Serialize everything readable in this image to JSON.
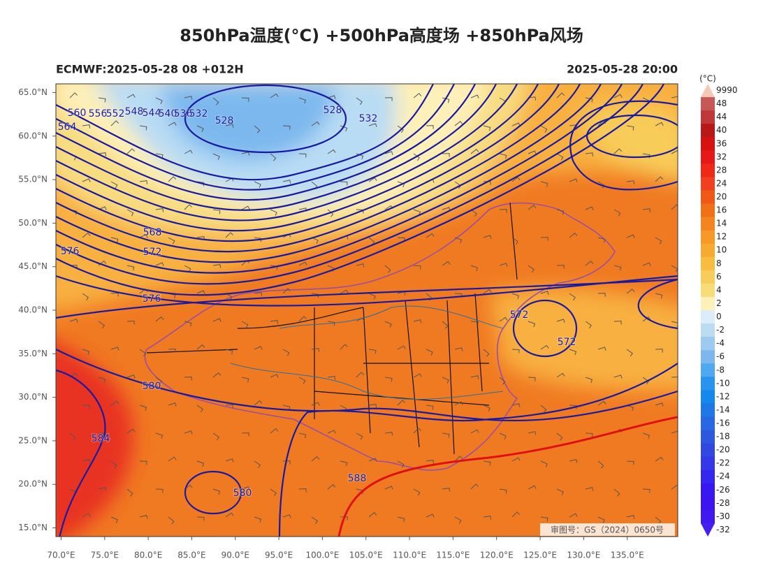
{
  "map_data": {
    "type": "weather-map",
    "title": "850hPa温度(°C) +500hPa高度场 +850hPa风场",
    "subtitle_left": "ECMWF:2025-05-28 08 +012H",
    "subtitle_right": "2025-05-28 20:00",
    "xlim": [
      69.4,
      140.8
    ],
    "ylim": [
      14,
      66
    ],
    "yticks": [
      {
        "value": 65,
        "label": "65.0°N"
      },
      {
        "value": 60,
        "label": "60.0°N"
      },
      {
        "value": 55,
        "label": "55.0°N"
      },
      {
        "value": 50,
        "label": "50.0°N"
      },
      {
        "value": 45,
        "label": "45.0°N"
      },
      {
        "value": 40,
        "label": "40.0°N"
      },
      {
        "value": 35,
        "label": "35.0°N"
      },
      {
        "value": 30,
        "label": "30.0°N"
      },
      {
        "value": 25,
        "label": "25.0°N"
      },
      {
        "value": 20,
        "label": "20.0°N"
      },
      {
        "value": 15,
        "label": "15.0°N"
      }
    ],
    "xticks": [
      {
        "value": 70,
        "label": "70.0°E"
      },
      {
        "value": 75,
        "label": "75.0°E"
      },
      {
        "value": 80,
        "label": "80.0°E"
      },
      {
        "value": 85,
        "label": "85.0°E"
      },
      {
        "value": 90,
        "label": "90.0°E"
      },
      {
        "value": 95,
        "label": "95.0°E"
      },
      {
        "value": 100,
        "label": "100.0°E"
      },
      {
        "value": 105,
        "label": "105.0°E"
      },
      {
        "value": 110,
        "label": "110.0°E"
      },
      {
        "value": 115,
        "label": "115.0°E"
      },
      {
        "value": 120,
        "label": "120.0°E"
      },
      {
        "value": 125,
        "label": "125.0°E"
      },
      {
        "value": 130,
        "label": "130.0°E"
      },
      {
        "value": 135,
        "label": "135.0°E"
      }
    ],
    "colorbar": {
      "unit": "(°C)",
      "levels": [
        9990,
        48,
        44,
        40,
        36,
        32,
        28,
        24,
        20,
        16,
        14,
        12,
        10,
        8,
        6,
        4,
        2,
        0,
        -2,
        -4,
        -6,
        -8,
        -10,
        -12,
        -14,
        -16,
        -18,
        -20,
        -22,
        -24,
        -26,
        -28,
        -30,
        -32
      ],
      "colors": [
        "#f6c8b8",
        "#c85858",
        "#c03838",
        "#b81818",
        "#d81010",
        "#e81818",
        "#f02818",
        "#f04020",
        "#f05818",
        "#f07018",
        "#f48420",
        "#f89828",
        "#f8aa30",
        "#f8bc40",
        "#f8cc58",
        "#f8dc78",
        "#fdf0b8",
        "#dcecf8",
        "#bcdcf4",
        "#9ccaf0",
        "#7cb8ee",
        "#50a8f0",
        "#2894f0",
        "#1488ec",
        "#2078e8",
        "#2868e4",
        "#2c58e0",
        "#3048e0",
        "#3438e8",
        "#3428f0",
        "#3818f0",
        "#3c14f0",
        "#4018f0",
        "#4420f0"
      ]
    },
    "contour_labels": [
      560,
      556,
      552,
      548,
      544,
      540,
      536,
      532,
      528,
      528,
      532,
      564,
      568,
      572,
      576,
      576,
      580,
      584,
      580,
      588,
      572,
      572
    ],
    "watermark": "审图号：GS（2024）0650号"
  }
}
